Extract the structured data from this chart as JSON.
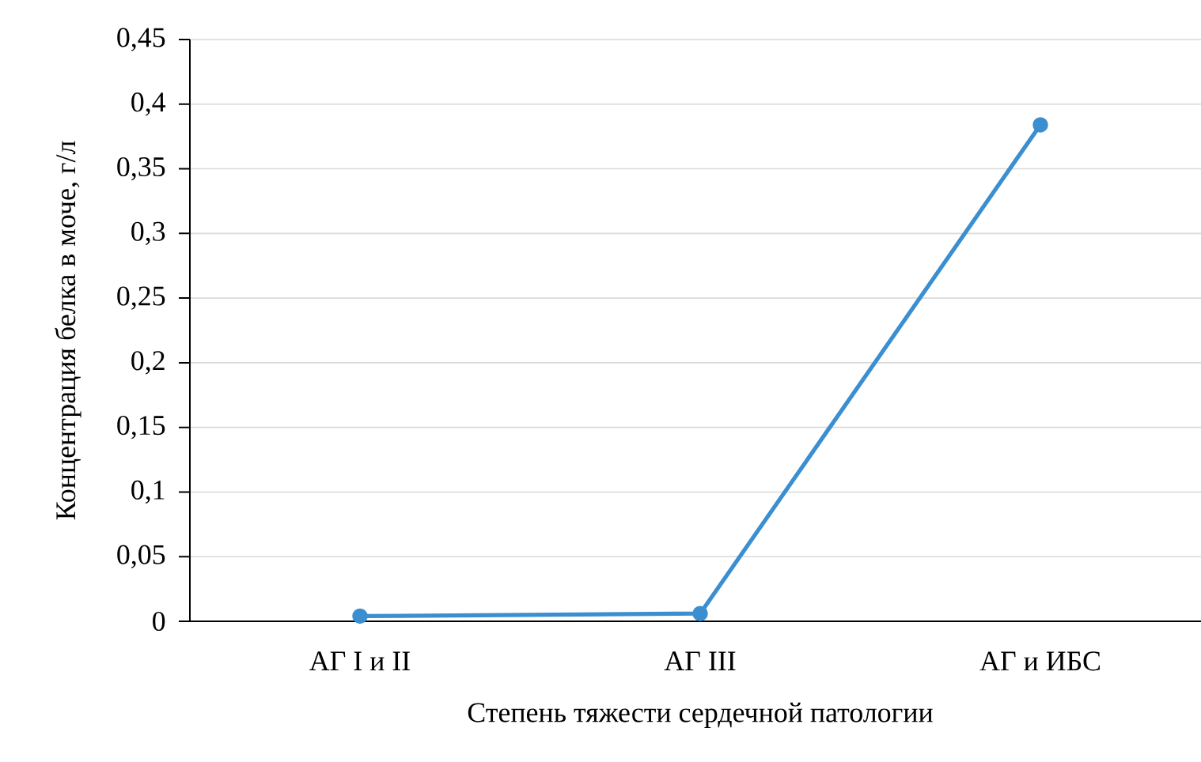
{
  "chart_data": {
    "type": "line",
    "xlabel": "Степень тяжести сердечной патологии",
    "ylabel": "Концентрация белка в моче, г/л",
    "categories": [
      "АГ I и II",
      "АГ III",
      "АГ и ИБС"
    ],
    "series": [
      {
        "color": "#3b8fd0",
        "values": [
          0.004,
          0.006,
          0.384
        ]
      }
    ],
    "ylim": [
      0,
      0.45
    ],
    "yticks": [
      {
        "value": 0,
        "label": "0"
      },
      {
        "value": 0.05,
        "label": "0,05"
      },
      {
        "value": 0.1,
        "label": "0,1"
      },
      {
        "value": 0.15,
        "label": "0,15"
      },
      {
        "value": 0.2,
        "label": "0,2"
      },
      {
        "value": 0.25,
        "label": "0,25"
      },
      {
        "value": 0.3,
        "label": "0,3"
      },
      {
        "value": 0.35,
        "label": "0,35"
      },
      {
        "value": 0.4,
        "label": "0,4"
      },
      {
        "value": 0.45,
        "label": "0,45"
      }
    ],
    "grid": "y",
    "marker": "circle",
    "line_style": "solid"
  }
}
